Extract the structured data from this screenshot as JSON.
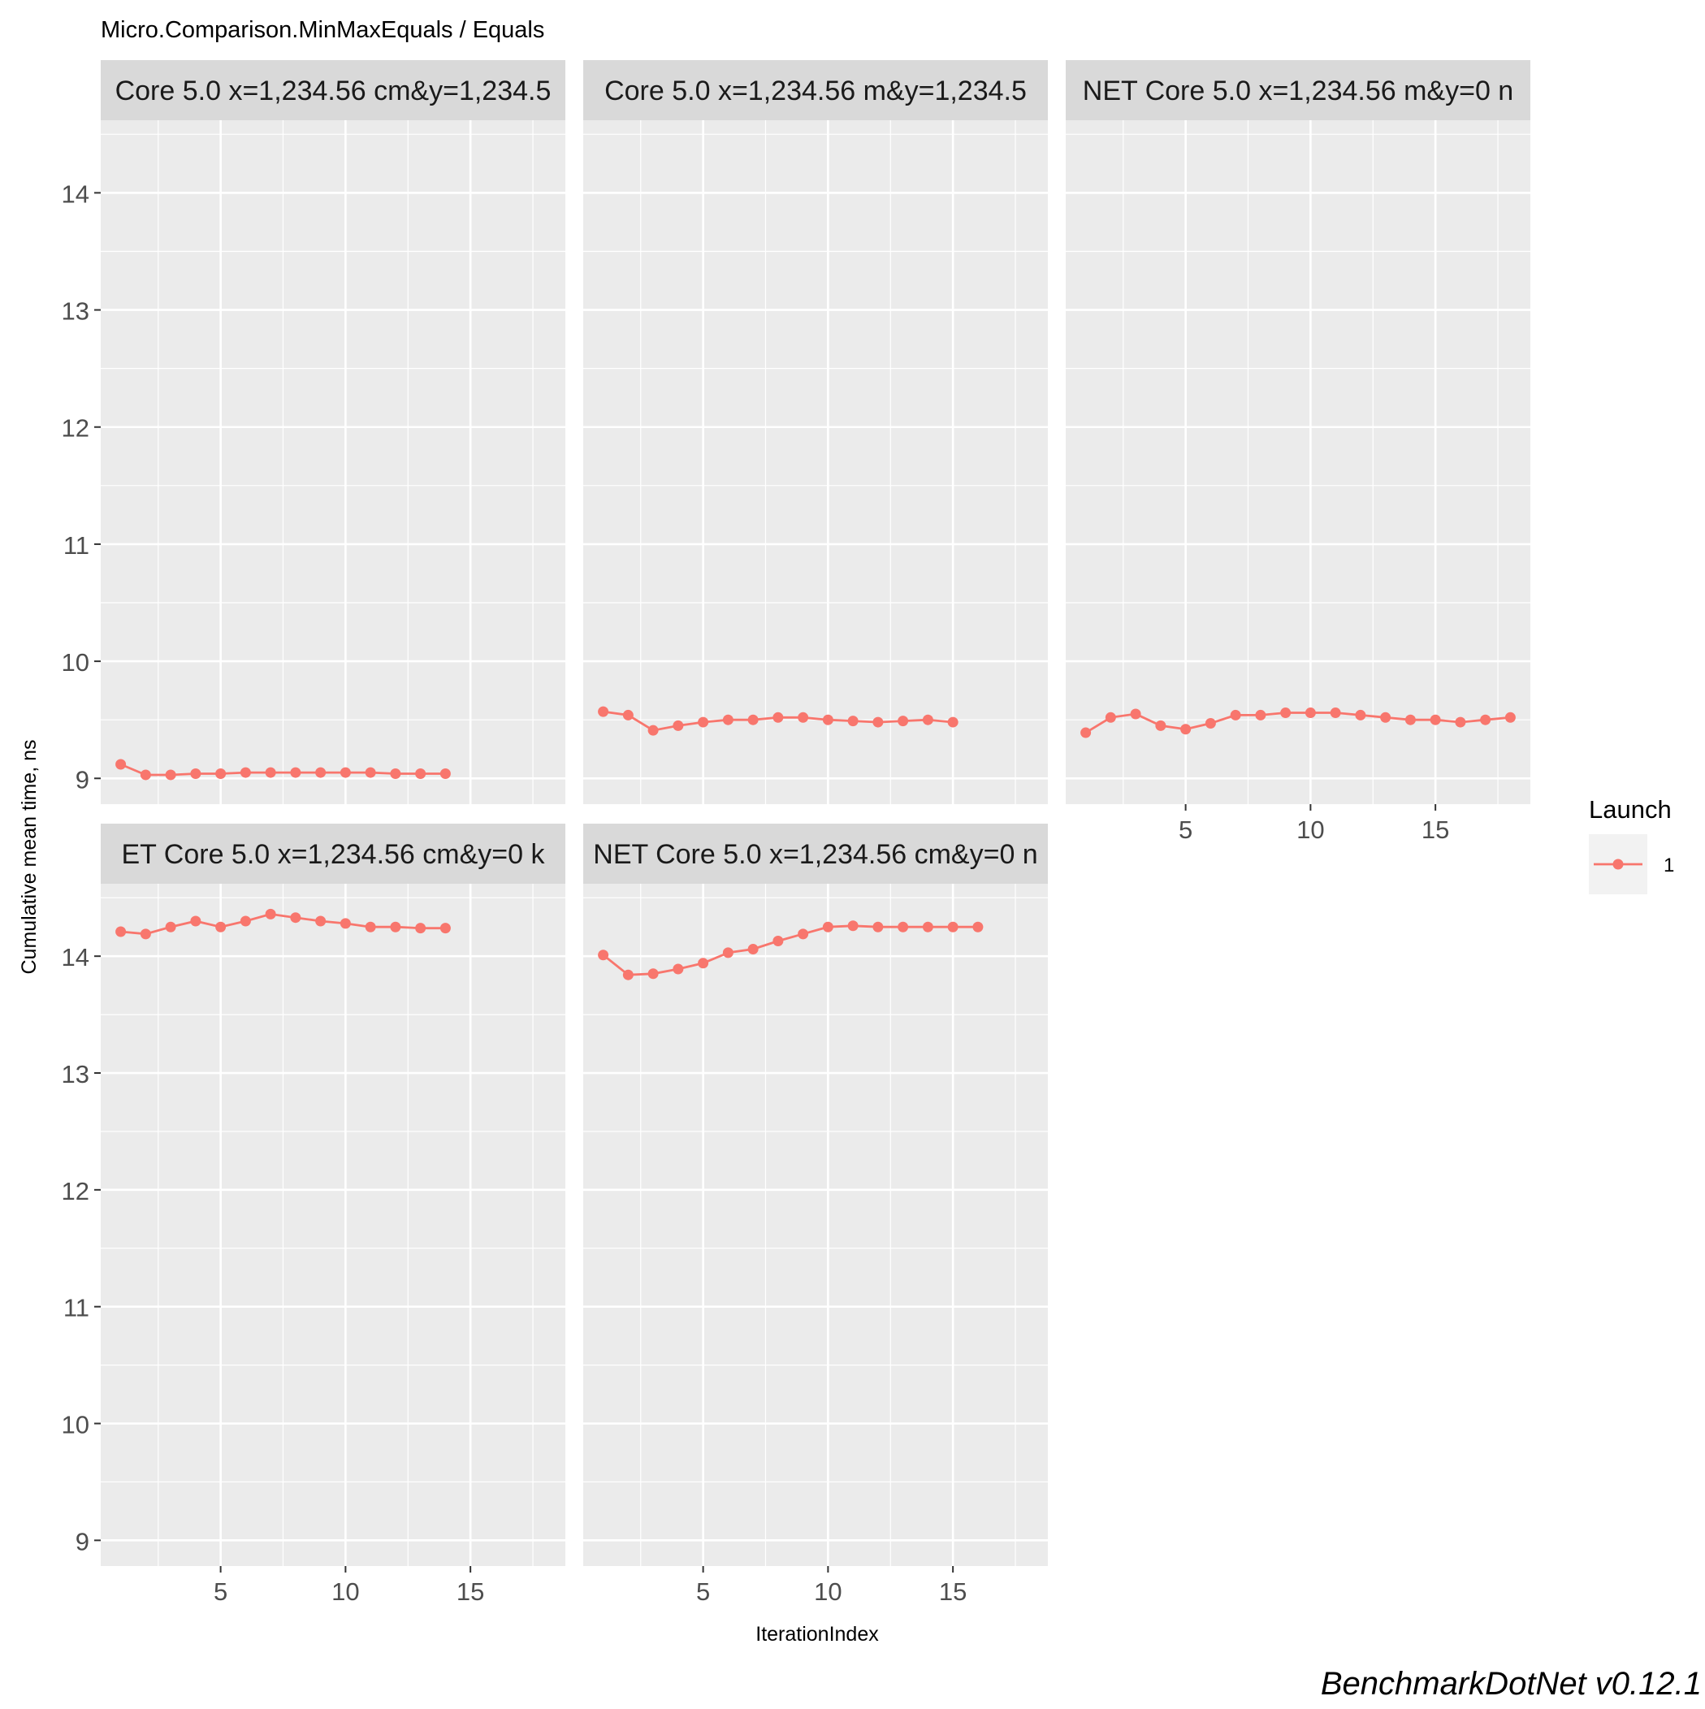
{
  "chart_data": {
    "type": "line",
    "title": "Micro.Comparison.MinMaxEquals / Equals",
    "xlabel": "IterationIndex",
    "ylabel": "Cumulative mean time, ns",
    "caption": "BenchmarkDotNet v0.12.1",
    "xlim": [
      0.2,
      18.8
    ],
    "ylim": [
      8.78,
      14.62
    ],
    "x_ticks": [
      5,
      10,
      15
    ],
    "y_ticks": [
      9,
      10,
      11,
      12,
      13,
      14
    ],
    "grid": true,
    "legend": {
      "title": "Launch",
      "entries": [
        "1"
      ],
      "placement": "right"
    },
    "colors": {
      "series": "#F8766D",
      "panel_bg": "#EBEBEB",
      "strip_bg": "#D9D9D9",
      "grid": "#FFFFFF",
      "text": "#4D4D4D"
    },
    "panels": [
      {
        "label": "Core 5.0 x=1,234.56 cm&y=1,234.5",
        "series": [
          {
            "name": "1",
            "x": [
              1,
              2,
              3,
              4,
              5,
              6,
              7,
              8,
              9,
              10,
              11,
              12,
              13,
              14
            ],
            "y": [
              9.12,
              9.03,
              9.03,
              9.04,
              9.04,
              9.05,
              9.05,
              9.05,
              9.05,
              9.05,
              9.05,
              9.04,
              9.04,
              9.04
            ]
          }
        ]
      },
      {
        "label": "Core 5.0 x=1,234.56 m&y=1,234.5",
        "series": [
          {
            "name": "1",
            "x": [
              1,
              2,
              3,
              4,
              5,
              6,
              7,
              8,
              9,
              10,
              11,
              12,
              13,
              14,
              15
            ],
            "y": [
              9.57,
              9.54,
              9.41,
              9.45,
              9.48,
              9.5,
              9.5,
              9.52,
              9.52,
              9.5,
              9.49,
              9.48,
              9.49,
              9.5,
              9.48
            ]
          }
        ]
      },
      {
        "label": "NET Core 5.0 x=1,234.56 m&y=0 n",
        "series": [
          {
            "name": "1",
            "x": [
              1,
              2,
              3,
              4,
              5,
              6,
              7,
              8,
              9,
              10,
              11,
              12,
              13,
              14,
              15,
              16,
              17,
              18
            ],
            "y": [
              9.39,
              9.52,
              9.55,
              9.45,
              9.42,
              9.47,
              9.54,
              9.54,
              9.56,
              9.56,
              9.56,
              9.54,
              9.52,
              9.5,
              9.5,
              9.48,
              9.5,
              9.52
            ]
          }
        ]
      },
      {
        "label": "ET Core 5.0 x=1,234.56 cm&y=0 k",
        "series": [
          {
            "name": "1",
            "x": [
              1,
              2,
              3,
              4,
              5,
              6,
              7,
              8,
              9,
              10,
              11,
              12,
              13,
              14
            ],
            "y": [
              14.21,
              14.19,
              14.25,
              14.3,
              14.25,
              14.3,
              14.36,
              14.33,
              14.3,
              14.28,
              14.25,
              14.25,
              14.24,
              14.24
            ]
          }
        ]
      },
      {
        "label": "NET Core 5.0 x=1,234.56 cm&y=0 n",
        "series": [
          {
            "name": "1",
            "x": [
              1,
              2,
              3,
              4,
              5,
              6,
              7,
              8,
              9,
              10,
              11,
              12,
              13,
              14,
              15,
              16
            ],
            "y": [
              14.01,
              13.84,
              13.85,
              13.89,
              13.94,
              14.03,
              14.06,
              14.13,
              14.19,
              14.25,
              14.26,
              14.25,
              14.25,
              14.25,
              14.25,
              14.25
            ]
          }
        ]
      }
    ]
  }
}
